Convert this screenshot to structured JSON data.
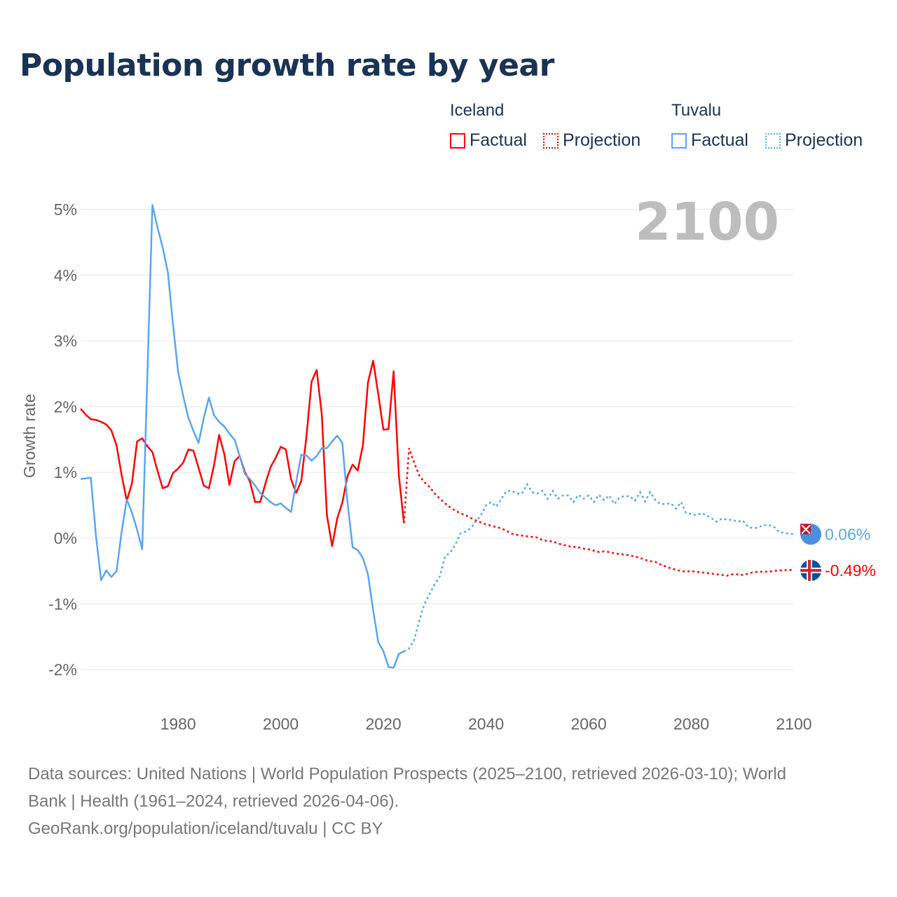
{
  "title": "Population growth rate by year",
  "legend": {
    "groups": [
      {
        "name": "Iceland",
        "factual": "Factual",
        "projection": "Projection",
        "color": "#ff0000"
      },
      {
        "name": "Tuvalu",
        "factual": "Factual",
        "projection": "Projection",
        "color": "#5aa5ea"
      }
    ]
  },
  "year_overlay": "2100",
  "footer": {
    "line1": "Data sources: United Nations | World Population Prospects (2025–2100, retrieved 2026-03-10); World",
    "line2": "Bank | Health (1961–2024, retrieved 2026-04-06).",
    "line3": "GeoRank.org/population/iceland/tuvalu | CC BY"
  },
  "chart_data": {
    "type": "line",
    "title": "Population growth rate by year",
    "xlabel": "",
    "ylabel": "Growth rate",
    "xlim": [
      1961,
      2100
    ],
    "ylim": [
      -2.5,
      5.3
    ],
    "xticks": [
      1980,
      2000,
      2020,
      2040,
      2060,
      2080,
      2100
    ],
    "xtick_labels": [
      "1980",
      "2000",
      "2020",
      "2040",
      "2060",
      "2080",
      "2100"
    ],
    "yticks": [
      5,
      4,
      3,
      2,
      1,
      0,
      -1,
      -2
    ],
    "ytick_labels": [
      "5%",
      "4%",
      "3%",
      "2%",
      "1%",
      "0%",
      "-1%",
      "-2%"
    ],
    "grid": true,
    "legend_position": "top-right",
    "series": [
      {
        "name": "Iceland",
        "color": "#ff0000",
        "end_label": "-0.49%",
        "factual_start": 1961,
        "factual": [
          1.97,
          1.88,
          1.81,
          1.8,
          1.77,
          1.73,
          1.64,
          1.41,
          0.96,
          0.57,
          0.83,
          1.47,
          1.52,
          1.4,
          1.31,
          1.02,
          0.76,
          0.79,
          0.99,
          1.06,
          1.15,
          1.35,
          1.33,
          1.07,
          0.8,
          0.76,
          1.11,
          1.57,
          1.28,
          0.81,
          1.17,
          1.25,
          1.01,
          0.86,
          0.55,
          0.55,
          0.83,
          1.08,
          1.22,
          1.39,
          1.35,
          0.9,
          0.69,
          0.87,
          1.54,
          2.38,
          2.56,
          1.88,
          0.35,
          -0.12,
          0.3,
          0.54,
          0.94,
          1.12,
          1.03,
          1.41,
          2.37,
          2.7,
          2.19,
          1.65,
          1.66,
          2.54,
          0.96,
          0.23
        ],
        "projection_start": 2025,
        "projection": [
          1.37,
          1.15,
          0.95,
          0.85,
          0.78,
          0.68,
          0.6,
          0.53,
          0.47,
          0.42,
          0.38,
          0.35,
          0.31,
          0.27,
          0.24,
          0.21,
          0.19,
          0.17,
          0.15,
          0.11,
          0.07,
          0.05,
          0.04,
          0.03,
          0.02,
          0.01,
          -0.03,
          -0.04,
          -0.05,
          -0.08,
          -0.1,
          -0.12,
          -0.13,
          -0.14,
          -0.16,
          -0.17,
          -0.19,
          -0.21,
          -0.2,
          -0.21,
          -0.23,
          -0.24,
          -0.25,
          -0.26,
          -0.28,
          -0.3,
          -0.33,
          -0.35,
          -0.36,
          -0.4,
          -0.43,
          -0.46,
          -0.48,
          -0.5,
          -0.51,
          -0.5,
          -0.51,
          -0.52,
          -0.53,
          -0.54,
          -0.55,
          -0.56,
          -0.57,
          -0.55,
          -0.55,
          -0.56,
          -0.54,
          -0.52,
          -0.51,
          -0.51,
          -0.51,
          -0.5,
          -0.49,
          -0.49,
          -0.48,
          -0.49
        ]
      },
      {
        "name": "Tuvalu",
        "color": "#5aa5ea",
        "end_label": "0.06%",
        "factual_start": 1961,
        "factual": [
          0.9,
          0.91,
          0.92,
          0.03,
          -0.64,
          -0.49,
          -0.59,
          -0.5,
          0.1,
          0.59,
          0.39,
          0.13,
          -0.17,
          2.45,
          5.07,
          4.72,
          4.42,
          4.05,
          3.26,
          2.53,
          2.16,
          1.83,
          1.63,
          1.45,
          1.83,
          2.14,
          1.87,
          1.77,
          1.7,
          1.59,
          1.5,
          1.25,
          0.98,
          0.9,
          0.8,
          0.69,
          0.62,
          0.55,
          0.5,
          0.53,
          0.46,
          0.4,
          0.85,
          1.27,
          1.26,
          1.18,
          1.25,
          1.37,
          1.37,
          1.47,
          1.56,
          1.45,
          0.55,
          -0.14,
          -0.18,
          -0.3,
          -0.55,
          -1.1,
          -1.58,
          -1.72,
          -1.96,
          -1.97,
          -1.76,
          -1.72
        ],
        "projection_start": 2025,
        "projection": [
          -1.68,
          -1.55,
          -1.25,
          -1.0,
          -0.85,
          -0.7,
          -0.58,
          -0.28,
          -0.22,
          -0.1,
          0.07,
          0.1,
          0.15,
          0.25,
          0.35,
          0.5,
          0.55,
          0.48,
          0.6,
          0.72,
          0.72,
          0.68,
          0.68,
          0.82,
          0.7,
          0.68,
          0.72,
          0.6,
          0.72,
          0.6,
          0.65,
          0.65,
          0.55,
          0.66,
          0.6,
          0.65,
          0.55,
          0.66,
          0.58,
          0.65,
          0.52,
          0.62,
          0.64,
          0.64,
          0.57,
          0.7,
          0.56,
          0.7,
          0.58,
          0.52,
          0.52,
          0.53,
          0.45,
          0.55,
          0.38,
          0.37,
          0.35,
          0.38,
          0.35,
          0.3,
          0.25,
          0.3,
          0.28,
          0.28,
          0.25,
          0.27,
          0.18,
          0.15,
          0.16,
          0.2,
          0.2,
          0.18,
          0.1,
          0.08,
          0.07,
          0.06
        ]
      }
    ]
  }
}
